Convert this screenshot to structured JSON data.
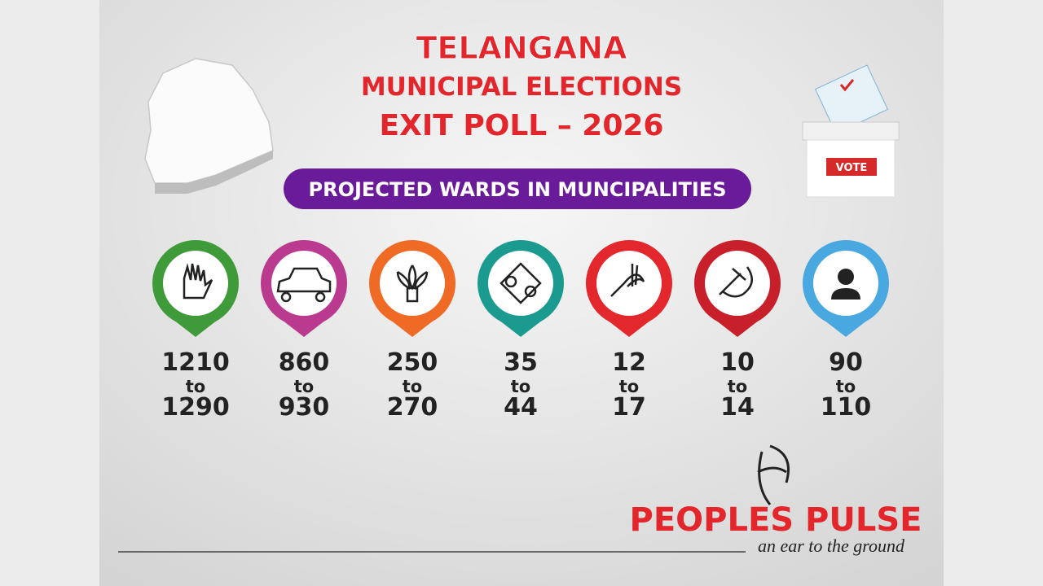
{
  "header": {
    "title": "TELANGANA",
    "subtitle": "MUNICIPAL ELECTIONS",
    "poll": "EXIT POLL – 2026"
  },
  "banner": "PROJECTED WARDS IN MUNCIPALITIES",
  "ballot_label": "VOTE",
  "parties": [
    {
      "color": "#3f9b3a",
      "low": 1210,
      "joiner": "to",
      "high": 1290
    },
    {
      "color": "#b93a8e",
      "low": 860,
      "joiner": "to",
      "high": 930
    },
    {
      "color": "#ef6a24",
      "low": 250,
      "joiner": "to",
      "high": 270
    },
    {
      "color": "#1b9a8f",
      "low": 35,
      "joiner": "to",
      "high": 44
    },
    {
      "color": "#e2272d",
      "low": 12,
      "joiner": "to",
      "high": 17
    },
    {
      "color": "#c8202a",
      "low": 10,
      "joiner": "to",
      "high": 14
    },
    {
      "color": "#4aa8e0",
      "low": 90,
      "joiner": "to",
      "high": 110
    }
  ],
  "brand": {
    "name": "PEOPLES PULSE",
    "tagline": "an ear to the ground"
  }
}
